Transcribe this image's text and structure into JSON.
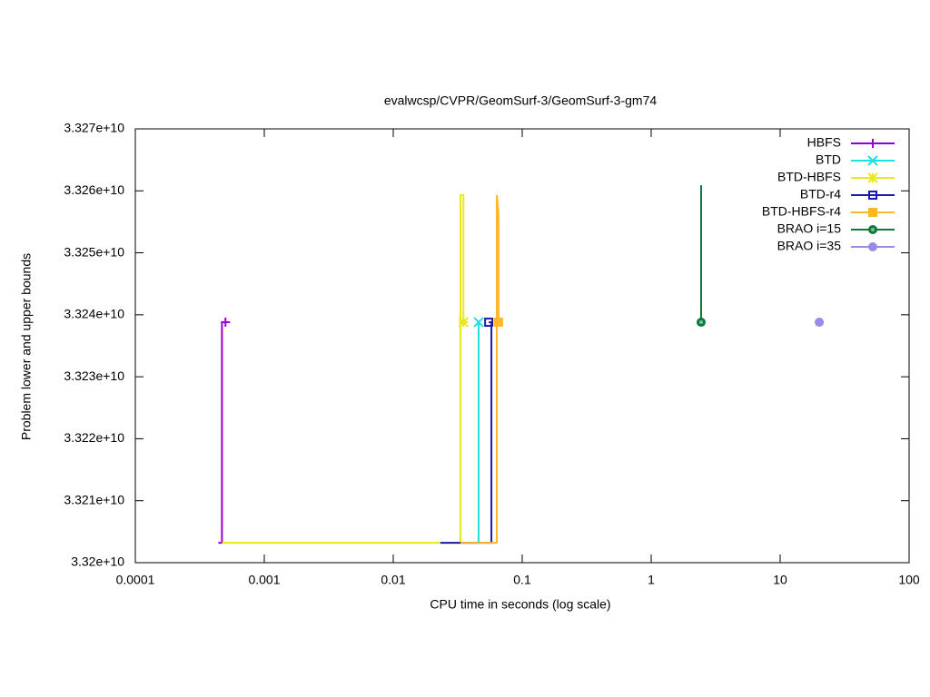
{
  "chart_data": {
    "type": "line",
    "title": "evalwcsp/CVPR/GeomSurf-3/GeomSurf-3-gm74",
    "xlabel": "CPU time in seconds (log scale)",
    "ylabel": "Problem lower and upper bounds",
    "xlog": true,
    "xlim": [
      0.0001,
      100
    ],
    "xticks": [
      0.0001,
      0.001,
      0.01,
      0.1,
      1,
      10,
      100
    ],
    "ylim": [
      33200000000,
      33270000000
    ],
    "yticks": [
      {
        "value": 33200000000,
        "label": "3.32e+10"
      },
      {
        "value": 33210000000,
        "label": "3.321e+10"
      },
      {
        "value": 33220000000,
        "label": "3.322e+10"
      },
      {
        "value": 33230000000,
        "label": "3.323e+10"
      },
      {
        "value": 33240000000,
        "label": "3.324e+10"
      },
      {
        "value": 33250000000,
        "label": "3.325e+10"
      },
      {
        "value": 33260000000,
        "label": "3.326e+10"
      },
      {
        "value": 33270000000,
        "label": "3.327e+10"
      }
    ],
    "legend": "top-right",
    "series": [
      {
        "name": "HBFS",
        "color": "#9400d3",
        "marker": "plus",
        "x": [
          0.00044,
          0.00047,
          0.00047,
          0.0005
        ],
        "y": [
          33203200000,
          33203200000,
          33238800000,
          33238800000
        ]
      },
      {
        "name": "BTD",
        "color": "#1ee0e0",
        "marker": "cross",
        "x": [
          0.0332,
          0.0459,
          0.0459,
          0.046
        ],
        "y": [
          33203200000,
          33203200000,
          33238800000,
          33238800000
        ]
      },
      {
        "name": "BTD-HBFS",
        "color": "#e8e81a",
        "marker": "star",
        "x": [
          0.00047,
          0.0332,
          0.0332,
          0.035,
          0.035
        ],
        "y": [
          33203200000,
          33203200000,
          33259300000,
          33259300000,
          33238800000
        ]
      },
      {
        "name": "BTD-r4",
        "color": "#1a1ab0",
        "marker": "square-open",
        "x": [
          0.0232,
          0.0577,
          0.0577,
          0.055
        ],
        "y": [
          33203200000,
          33203200000,
          33238800000,
          33238800000
        ]
      },
      {
        "name": "BTD-HBFS-r4",
        "color": "#ffb628",
        "marker": "square",
        "x": [
          0.0332,
          0.0635,
          0.0635,
          0.0655,
          0.0655
        ],
        "y": [
          33203200000,
          33203200000,
          33259300000,
          33256400000,
          33238800000
        ]
      },
      {
        "name": "BRAO i=15",
        "color": "#0a7a3a",
        "marker": "circle-ring",
        "x": [
          2.44,
          2.44
        ],
        "y": [
          33260900000,
          33238800000
        ]
      },
      {
        "name": "BRAO i=35",
        "color": "#9a88ea",
        "marker": "circle",
        "x": [
          20.1
        ],
        "y": [
          33238800000
        ]
      }
    ]
  }
}
